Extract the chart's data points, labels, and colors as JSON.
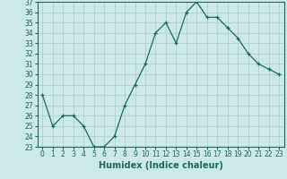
{
  "x": [
    0,
    1,
    2,
    3,
    4,
    5,
    6,
    7,
    8,
    9,
    10,
    11,
    12,
    13,
    14,
    15,
    16,
    17,
    18,
    19,
    20,
    21,
    22,
    23
  ],
  "y": [
    28,
    25,
    26,
    26,
    25,
    23,
    23,
    24,
    27,
    29,
    31,
    34,
    35,
    33,
    36,
    37,
    35.5,
    35.5,
    34.5,
    33.5,
    32,
    31,
    30.5,
    30
  ],
  "line_color": "#1a6b5a",
  "marker": "+",
  "marker_color": "#1a6b5a",
  "bg_color": "#cce8e8",
  "grid_color": "#aacccc",
  "xlabel": "Humidex (Indice chaleur)",
  "xlabel_fontsize": 7,
  "tick_fontsize": 5.5,
  "ylim": [
    23,
    37
  ],
  "xlim": [
    -0.5,
    23.5
  ],
  "yticks": [
    23,
    24,
    25,
    26,
    27,
    28,
    29,
    30,
    31,
    32,
    33,
    34,
    35,
    36,
    37
  ],
  "xticks": [
    0,
    1,
    2,
    3,
    4,
    5,
    6,
    7,
    8,
    9,
    10,
    11,
    12,
    13,
    14,
    15,
    16,
    17,
    18,
    19,
    20,
    21,
    22,
    23
  ]
}
